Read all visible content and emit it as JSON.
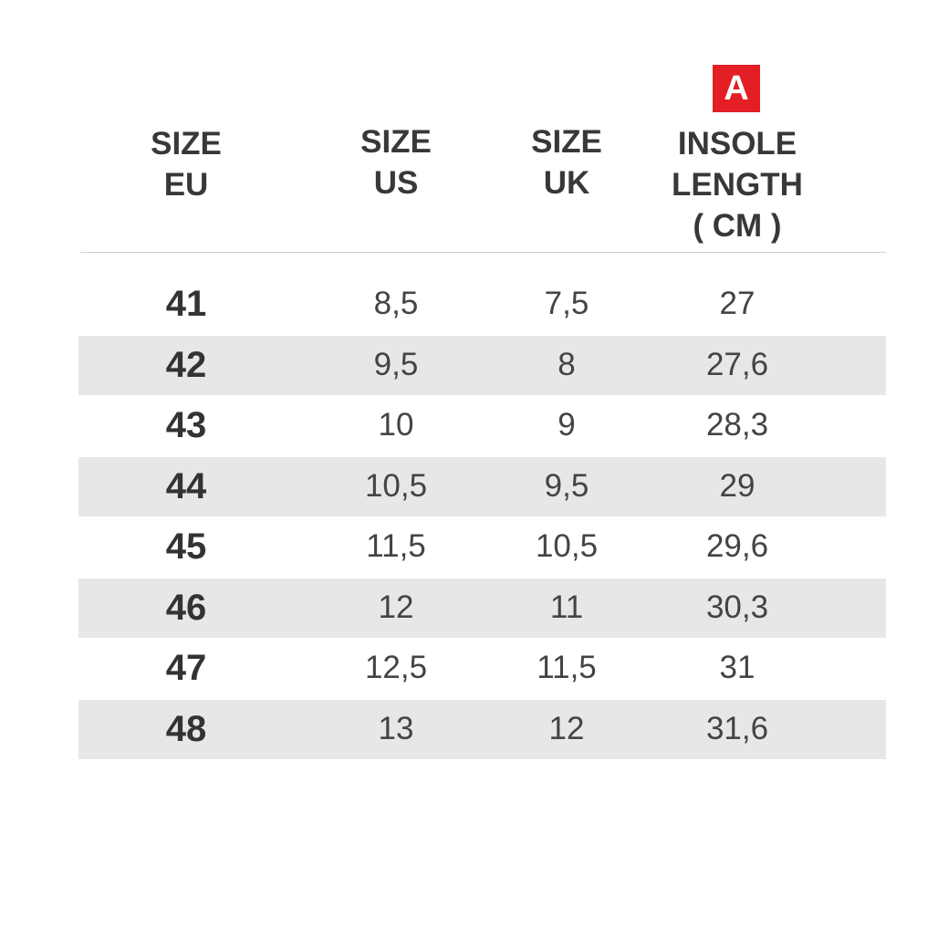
{
  "table": {
    "badge": "A",
    "headers": [
      [
        "SIZE",
        "EU"
      ],
      [
        "SIZE",
        "US"
      ],
      [
        "SIZE",
        "UK"
      ],
      [
        "INSOLE",
        "LENGTH",
        "( CM )"
      ]
    ],
    "rows": [
      [
        "41",
        "8,5",
        "7,5",
        "27"
      ],
      [
        "42",
        "9,5",
        "8",
        "27,6"
      ],
      [
        "43",
        "10",
        "9",
        "28,3"
      ],
      [
        "44",
        "10,5",
        "9,5",
        "29"
      ],
      [
        "45",
        "11,5",
        "10,5",
        "29,6"
      ],
      [
        "46",
        "12",
        "11",
        "30,3"
      ],
      [
        "47",
        "12,5",
        "11,5",
        "31"
      ],
      [
        "48",
        "13",
        "12",
        "31,6"
      ]
    ]
  }
}
